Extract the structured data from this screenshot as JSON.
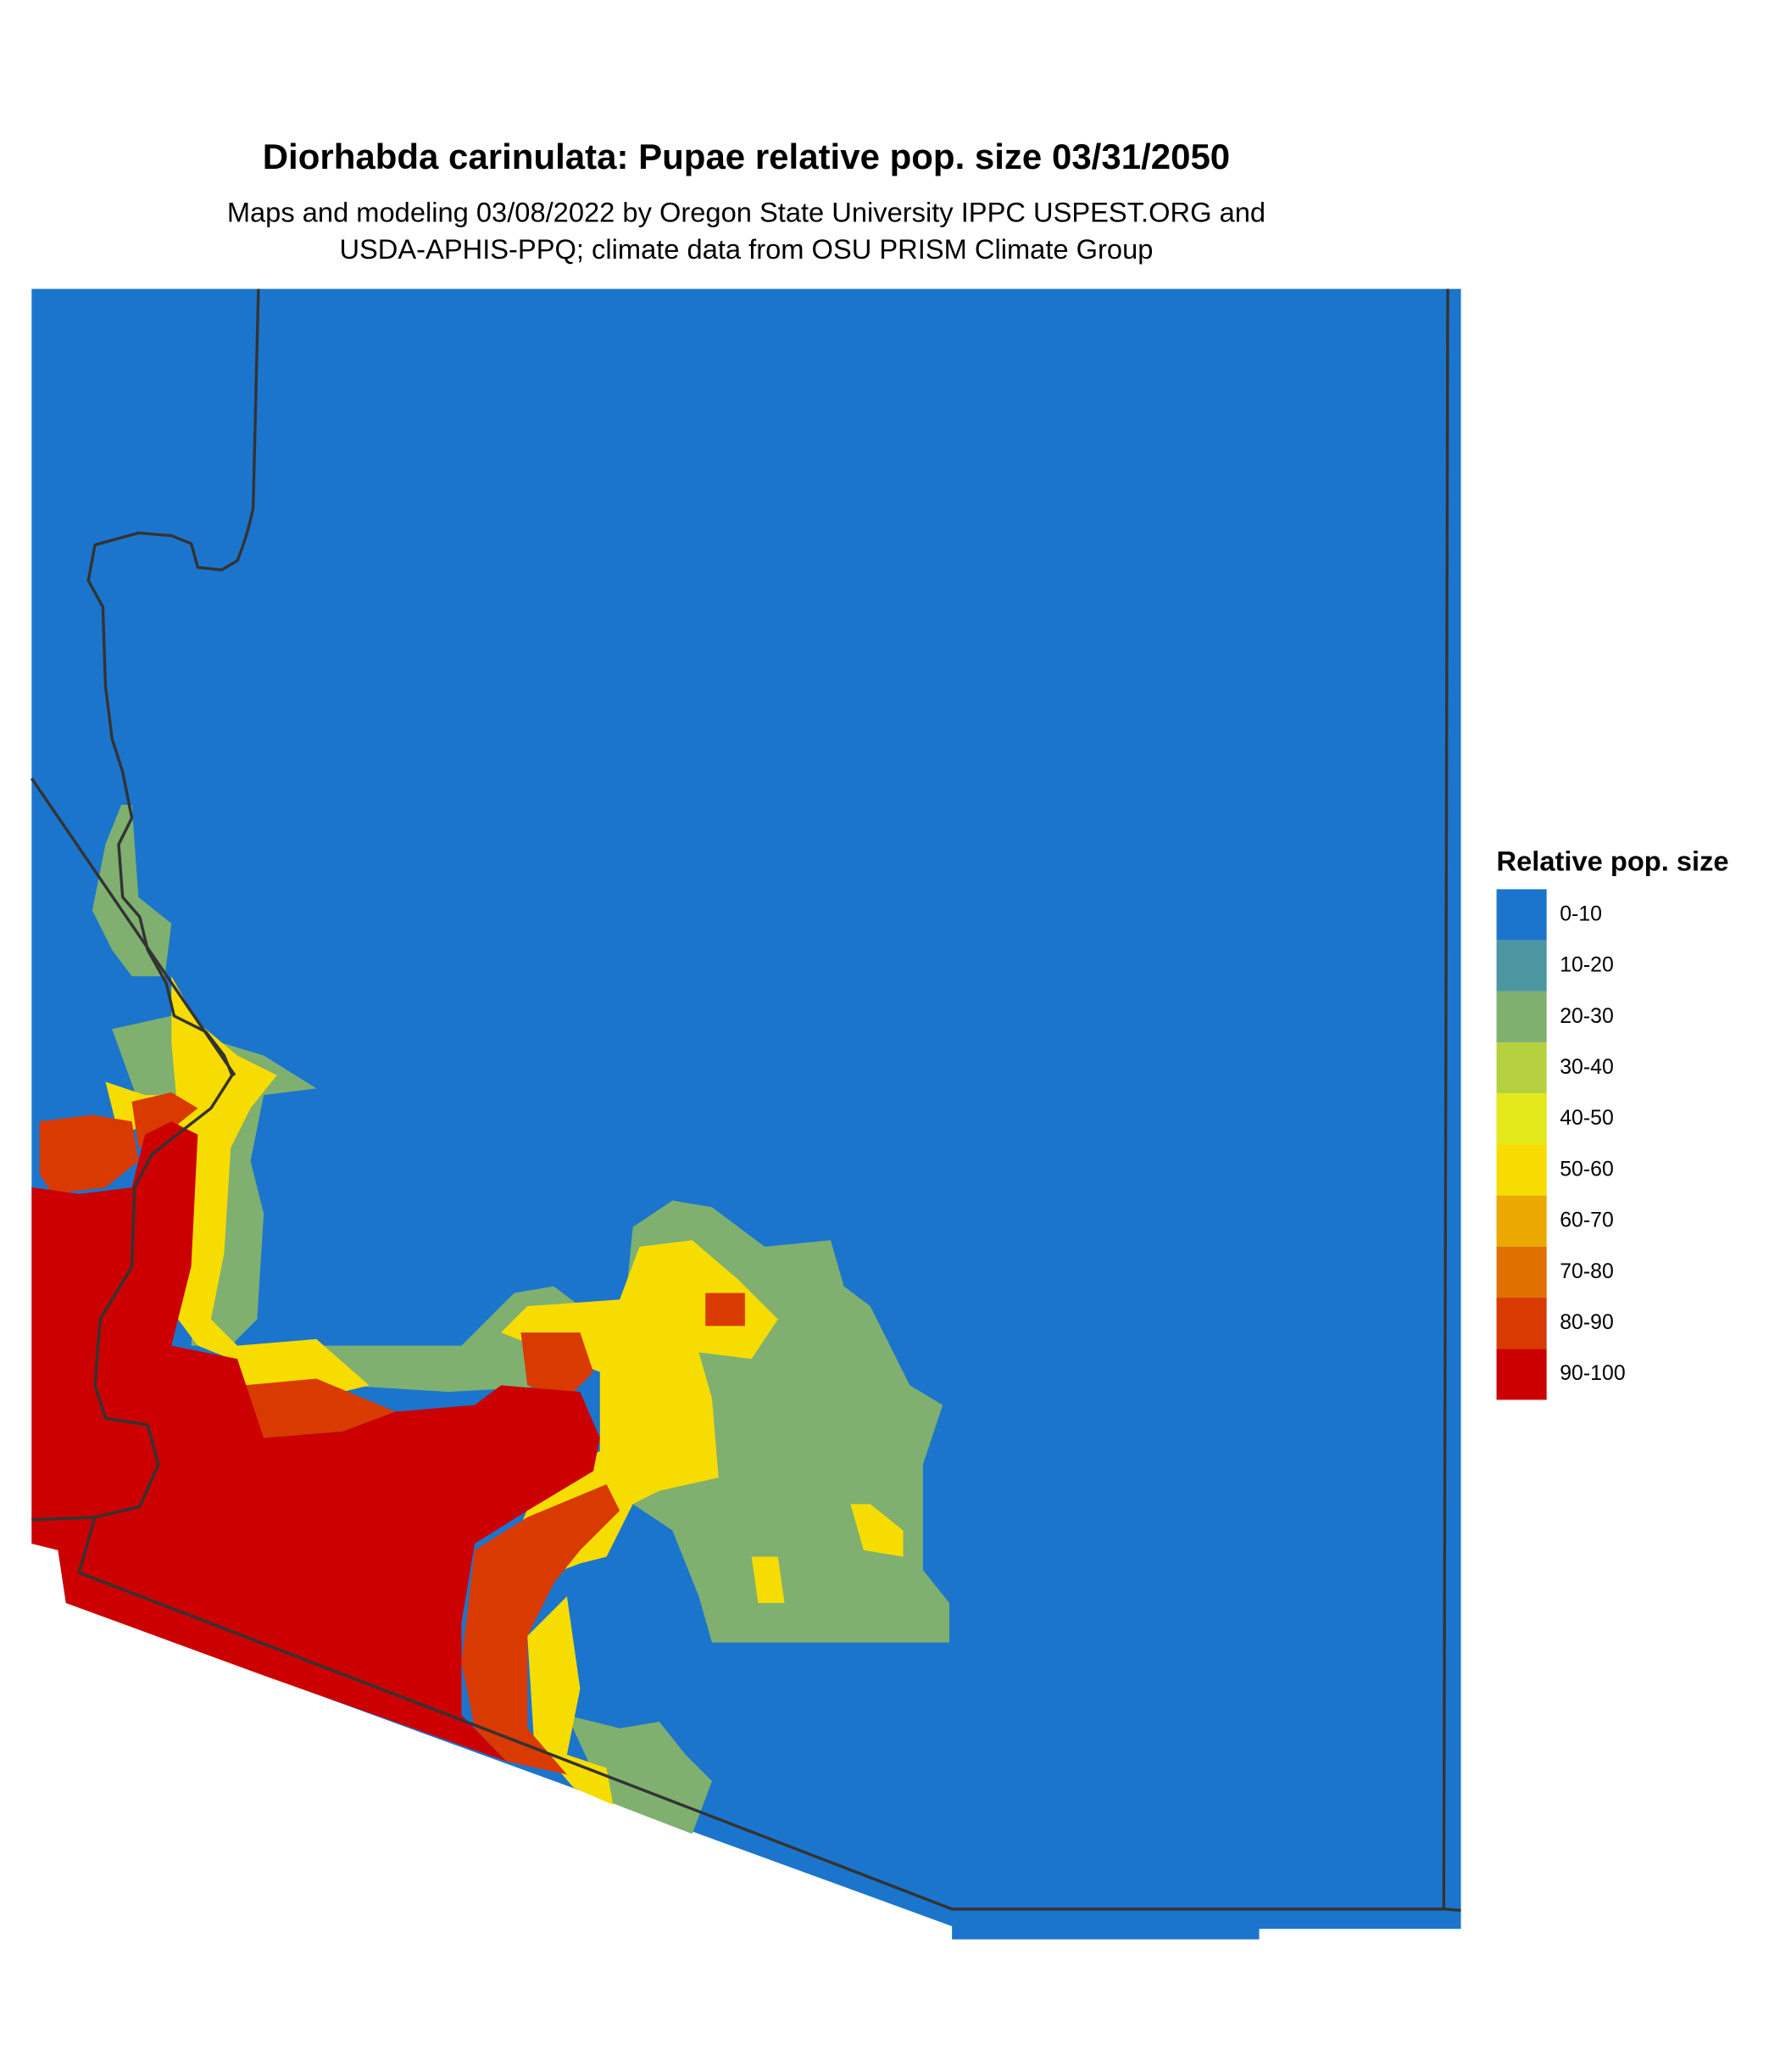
{
  "title": "Diorhabda carinulata: Pupae relative pop. size 03/31/2050",
  "subtitle": [
    "Maps and modeling 03/08/2022 by Oregon State University IPPC USPEST.ORG and",
    "USDA-APHIS-PPQ; climate data from OSU PRISM Climate Group"
  ],
  "legend": {
    "title": "Relative pop. size",
    "items": [
      {
        "label": "0-10",
        "color": "#1c75cc"
      },
      {
        "label": "10-20",
        "color": "#4b96a0"
      },
      {
        "label": "20-30",
        "color": "#7fb070"
      },
      {
        "label": "30-40",
        "color": "#b6d13f"
      },
      {
        "label": "40-50",
        "color": "#e3e81a"
      },
      {
        "label": "50-60",
        "color": "#f7dc00"
      },
      {
        "label": "60-70",
        "color": "#eaa800"
      },
      {
        "label": "70-80",
        "color": "#e07000"
      },
      {
        "label": "80-90",
        "color": "#d93a00"
      },
      {
        "label": "90-100",
        "color": "#cc0000"
      }
    ]
  }
}
